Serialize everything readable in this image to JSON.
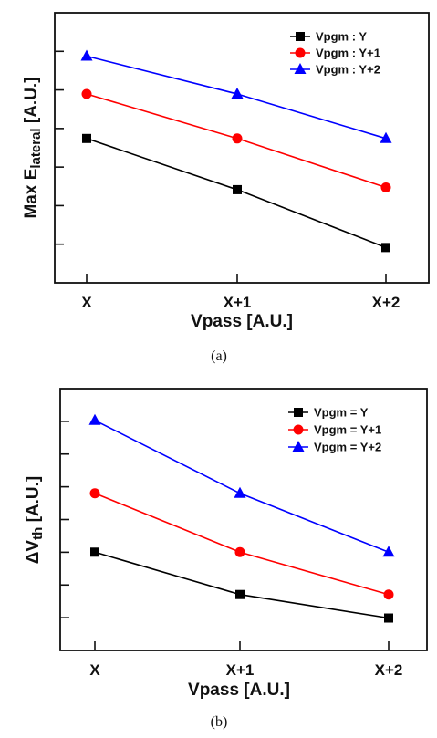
{
  "chart_data": [
    {
      "type": "line",
      "panel_label": "(a)",
      "categories": [
        "X",
        "X+1",
        "X+2"
      ],
      "xlabel": "Vpass [A.U.]",
      "ylabel_main": "Max E",
      "ylabel_sub": "lateral",
      "ylabel_unit": " [A.U.]",
      "ylim": [
        0,
        10
      ],
      "y_tick_count": 6,
      "legend_position": "top-right",
      "series": [
        {
          "name": "Vpgm : Y",
          "color": "#000000",
          "marker": "square",
          "values": [
            5.5,
            3.2,
            0.6
          ]
        },
        {
          "name": "Vpgm : Y+1",
          "color": "#ff0000",
          "marker": "circle",
          "values": [
            7.5,
            5.5,
            3.3
          ]
        },
        {
          "name": "Vpgm : Y+2",
          "color": "#0000ff",
          "marker": "triangle",
          "values": [
            9.2,
            7.5,
            5.5
          ]
        }
      ]
    },
    {
      "type": "line",
      "panel_label": "(b)",
      "categories": [
        "X",
        "X+1",
        "X+2"
      ],
      "xlabel": "Vpass [A.U.]",
      "ylabel_main": "ΔV",
      "ylabel_sub": "th",
      "ylabel_unit": " [A.U.]",
      "ylim": [
        0,
        10
      ],
      "y_tick_count": 7,
      "legend_position": "top-right",
      "series": [
        {
          "name": "Vpgm = Y",
          "color": "#000000",
          "marker": "square",
          "values": [
            3.4,
            1.6,
            0.6
          ]
        },
        {
          "name": "Vpgm = Y+1",
          "color": "#ff0000",
          "marker": "circle",
          "values": [
            5.9,
            3.4,
            1.6
          ]
        },
        {
          "name": "Vpgm = Y+2",
          "color": "#0000ff",
          "marker": "triangle",
          "values": [
            9.0,
            5.9,
            3.4
          ]
        }
      ]
    }
  ]
}
